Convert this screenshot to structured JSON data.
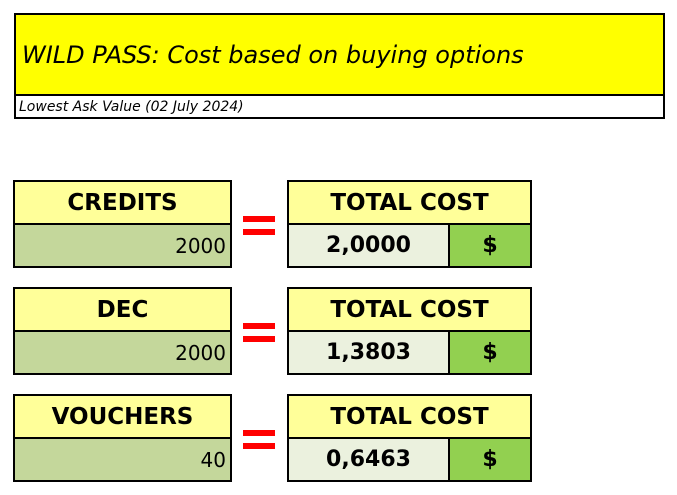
{
  "header": {
    "title": "WILD PASS: Cost based on buying options",
    "subtitle": "Lowest Ask Value (02 July 2024)"
  },
  "rows": [
    {
      "input_label": "CREDITS",
      "input_value": "2000",
      "equals": "=",
      "cost_label": "TOTAL COST",
      "cost_value": "2,0000",
      "currency": "$"
    },
    {
      "input_label": "DEC",
      "input_value": "2000",
      "equals": "=",
      "cost_label": "TOTAL COST",
      "cost_value": "1,3803",
      "currency": "$"
    },
    {
      "input_label": "VOUCHERS",
      "input_value": "40",
      "equals": "=",
      "cost_label": "TOTAL COST",
      "cost_value": "0,6463",
      "currency": "$"
    }
  ],
  "colors": {
    "title_bg": "#ffff00",
    "label_bg": "#ffff99",
    "input_bg": "#c4d79b",
    "cost_bg": "#ebf1de",
    "currency_bg": "#92d050",
    "equals": "#ff0000"
  }
}
